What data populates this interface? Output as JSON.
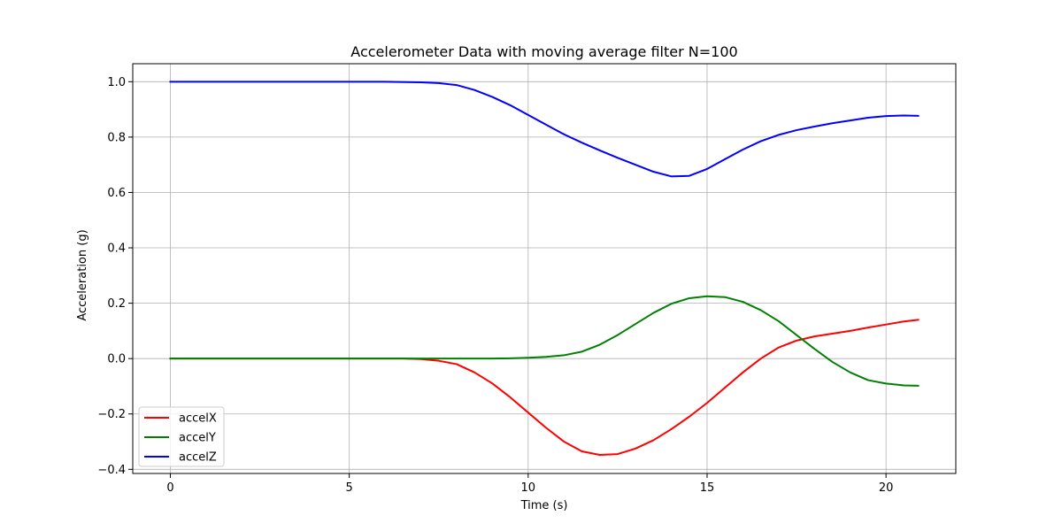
{
  "chart_data": {
    "type": "line",
    "title": "Accelerometer Data with moving average filter N=100",
    "xlabel": "Time (s)",
    "ylabel": "Acceleration (g)",
    "xlim": [
      -1.05,
      21.95
    ],
    "ylim": [
      -0.415,
      1.065
    ],
    "xticks": [
      0,
      5,
      10,
      15,
      20
    ],
    "xtick_labels": [
      "0",
      "5",
      "10",
      "15",
      "20"
    ],
    "yticks": [
      -0.4,
      -0.2,
      0.0,
      0.2,
      0.4,
      0.6,
      0.8,
      1.0
    ],
    "ytick_labels": [
      "−0.4",
      "−0.2",
      "0.0",
      "0.2",
      "0.4",
      "0.6",
      "0.8",
      "1.0"
    ],
    "grid": true,
    "legend_position": "lower-left",
    "series": [
      {
        "name": "accelX",
        "color": "#ff0000",
        "x": [
          0,
          1,
          2,
          3,
          4,
          5,
          6,
          6.5,
          7,
          7.5,
          8,
          8.5,
          9,
          9.5,
          10,
          10.5,
          11,
          11.5,
          12,
          12.5,
          13,
          13.5,
          14,
          14.5,
          15,
          15.5,
          16,
          16.5,
          17,
          17.5,
          18,
          18.5,
          19,
          19.5,
          20,
          20.5,
          20.9
        ],
        "y": [
          0.0,
          0.0,
          0.0,
          0.0,
          0.0,
          0.0,
          0.0,
          0.0,
          -0.002,
          -0.008,
          -0.02,
          -0.05,
          -0.09,
          -0.14,
          -0.195,
          -0.25,
          -0.3,
          -0.335,
          -0.348,
          -0.345,
          -0.325,
          -0.295,
          -0.255,
          -0.21,
          -0.16,
          -0.105,
          -0.05,
          0.0,
          0.04,
          0.065,
          0.08,
          0.09,
          0.1,
          0.112,
          0.123,
          0.134,
          0.14
        ]
      },
      {
        "name": "accelY",
        "color": "#008000",
        "x": [
          0,
          1,
          2,
          3,
          4,
          5,
          6,
          7,
          8,
          8.5,
          9,
          9.5,
          10,
          10.5,
          11,
          11.5,
          12,
          12.5,
          13,
          13.5,
          14,
          14.5,
          15,
          15.5,
          16,
          16.5,
          17,
          17.5,
          18,
          18.5,
          19,
          19.5,
          20,
          20.5,
          20.9
        ],
        "y": [
          0.0,
          0.0,
          0.0,
          0.0,
          0.0,
          0.0,
          0.0,
          0.0,
          0.0,
          0.0,
          0.0,
          0.001,
          0.003,
          0.006,
          0.012,
          0.025,
          0.05,
          0.085,
          0.125,
          0.165,
          0.198,
          0.218,
          0.225,
          0.222,
          0.205,
          0.175,
          0.135,
          0.085,
          0.035,
          -0.012,
          -0.05,
          -0.078,
          -0.09,
          -0.097,
          -0.098
        ]
      },
      {
        "name": "accelZ",
        "color": "#0000ff",
        "x": [
          0,
          1,
          2,
          3,
          4,
          5,
          6,
          7,
          7.5,
          8,
          8.5,
          9,
          9.5,
          10,
          10.5,
          11,
          11.5,
          12,
          12.5,
          13,
          13.5,
          14,
          14.5,
          15,
          15.5,
          16,
          16.5,
          17,
          17.5,
          18,
          18.5,
          19,
          19.5,
          20,
          20.5,
          20.9
        ],
        "y": [
          1.0,
          1.0,
          1.0,
          1.0,
          1.0,
          1.0,
          1.0,
          0.998,
          0.995,
          0.988,
          0.97,
          0.945,
          0.915,
          0.88,
          0.845,
          0.81,
          0.78,
          0.752,
          0.725,
          0.7,
          0.675,
          0.658,
          0.66,
          0.685,
          0.72,
          0.755,
          0.785,
          0.808,
          0.825,
          0.838,
          0.85,
          0.86,
          0.87,
          0.876,
          0.878,
          0.877
        ]
      }
    ]
  }
}
